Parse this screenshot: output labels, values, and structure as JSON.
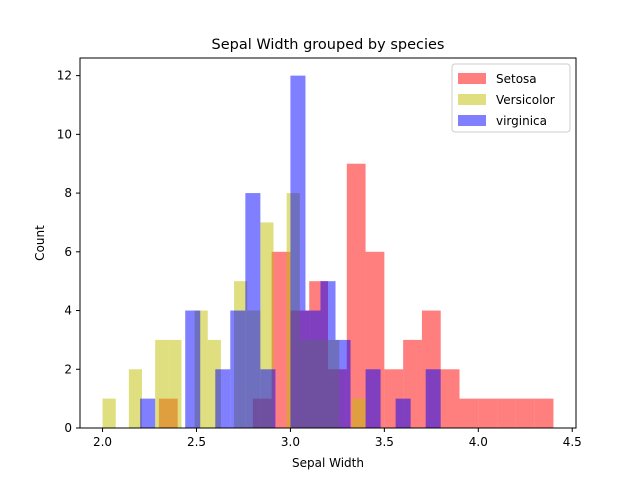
{
  "chart_data": {
    "type": "histogram",
    "title": "Sepal Width grouped by species",
    "xlabel": "Sepal Width",
    "ylabel": "Count",
    "xlim": [
      1.88,
      4.52
    ],
    "ylim": [
      0,
      12.6
    ],
    "xticks": [
      2.0,
      2.5,
      3.0,
      3.5,
      4.0,
      4.5
    ],
    "xtick_labels": [
      "2.0",
      "2.5",
      "3.0",
      "3.5",
      "4.0",
      "4.5"
    ],
    "yticks": [
      0,
      2,
      4,
      6,
      8,
      10,
      12
    ],
    "ytick_labels": [
      "0",
      "2",
      "4",
      "6",
      "8",
      "10",
      "12"
    ],
    "grid": false,
    "legend_position": "top-right",
    "series": [
      {
        "name": "Setosa",
        "color": "#ff0000",
        "alpha": 0.5,
        "bins": [
          {
            "x0": 2.3,
            "x1": 2.4,
            "count": 1
          },
          {
            "x0": 2.8,
            "x1": 2.9,
            "count": 1
          },
          {
            "x0": 2.9,
            "x1": 3.0,
            "count": 6
          },
          {
            "x0": 3.0,
            "x1": 3.1,
            "count": 4
          },
          {
            "x0": 3.1,
            "x1": 3.2,
            "count": 5
          },
          {
            "x0": 3.2,
            "x1": 3.3,
            "count": 2
          },
          {
            "x0": 3.3,
            "x1": 3.4,
            "count": 9
          },
          {
            "x0": 3.4,
            "x1": 3.5,
            "count": 6
          },
          {
            "x0": 3.5,
            "x1": 3.6,
            "count": 2
          },
          {
            "x0": 3.6,
            "x1": 3.7,
            "count": 3
          },
          {
            "x0": 3.7,
            "x1": 3.8,
            "count": 4
          },
          {
            "x0": 3.8,
            "x1": 3.9,
            "count": 2
          },
          {
            "x0": 3.9,
            "x1": 4.0,
            "count": 1
          },
          {
            "x0": 4.0,
            "x1": 4.1,
            "count": 1
          },
          {
            "x0": 4.1,
            "x1": 4.2,
            "count": 1
          },
          {
            "x0": 4.2,
            "x1": 4.3,
            "count": 1
          },
          {
            "x0": 4.3,
            "x1": 4.4,
            "count": 1
          }
        ]
      },
      {
        "name": "Versicolor",
        "color": "#bfbf00",
        "alpha": 0.5,
        "bins": [
          {
            "x0": 2.0,
            "x1": 2.07,
            "count": 1
          },
          {
            "x0": 2.14,
            "x1": 2.21,
            "count": 2
          },
          {
            "x0": 2.28,
            "x1": 2.35,
            "count": 3
          },
          {
            "x0": 2.35,
            "x1": 2.42,
            "count": 3
          },
          {
            "x0": 2.49,
            "x1": 2.56,
            "count": 4
          },
          {
            "x0": 2.56,
            "x1": 2.63,
            "count": 3
          },
          {
            "x0": 2.7,
            "x1": 2.77,
            "count": 5
          },
          {
            "x0": 2.77,
            "x1": 2.84,
            "count": 4
          },
          {
            "x0": 2.84,
            "x1": 2.91,
            "count": 7
          },
          {
            "x0": 2.98,
            "x1": 3.05,
            "count": 8
          },
          {
            "x0": 3.05,
            "x1": 3.12,
            "count": 3
          },
          {
            "x0": 3.12,
            "x1": 3.19,
            "count": 3
          },
          {
            "x0": 3.19,
            "x1": 3.26,
            "count": 3
          },
          {
            "x0": 3.33,
            "x1": 3.4,
            "count": 1
          }
        ]
      },
      {
        "name": "virginica",
        "color": "#0000ff",
        "alpha": 0.5,
        "bins": [
          {
            "x0": 2.2,
            "x1": 2.28,
            "count": 1
          },
          {
            "x0": 2.44,
            "x1": 2.52,
            "count": 4
          },
          {
            "x0": 2.6,
            "x1": 2.68,
            "count": 2
          },
          {
            "x0": 2.68,
            "x1": 2.76,
            "count": 4
          },
          {
            "x0": 2.76,
            "x1": 2.84,
            "count": 8
          },
          {
            "x0": 2.84,
            "x1": 2.92,
            "count": 2
          },
          {
            "x0": 3.0,
            "x1": 3.08,
            "count": 12
          },
          {
            "x0": 3.08,
            "x1": 3.16,
            "count": 4
          },
          {
            "x0": 3.16,
            "x1": 3.24,
            "count": 5
          },
          {
            "x0": 3.24,
            "x1": 3.32,
            "count": 3
          },
          {
            "x0": 3.4,
            "x1": 3.48,
            "count": 2
          },
          {
            "x0": 3.56,
            "x1": 3.64,
            "count": 1
          },
          {
            "x0": 3.72,
            "x1": 3.8,
            "count": 2
          }
        ]
      }
    ]
  }
}
